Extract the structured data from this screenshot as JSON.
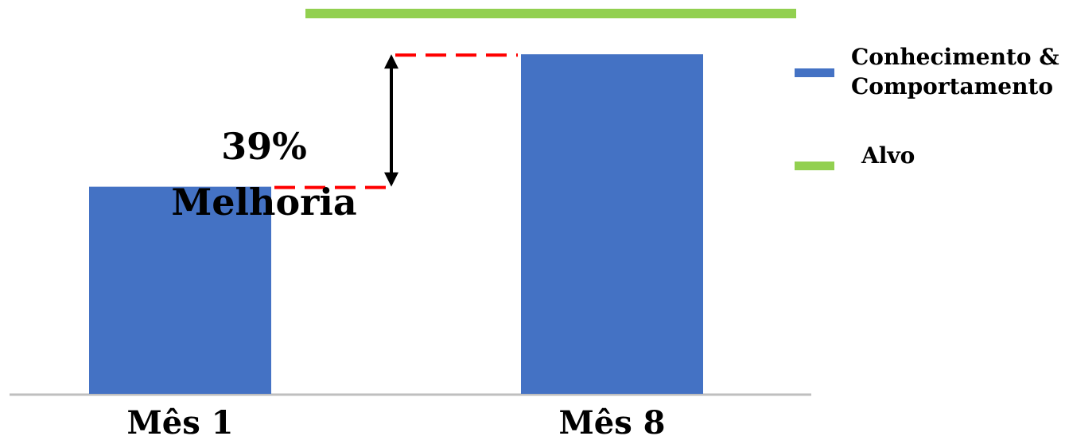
{
  "chart_data": {
    "type": "bar",
    "categories": [
      "Mês 1",
      "Mês 8"
    ],
    "series": [
      {
        "name": "Conhecimento & Comportamento",
        "values": [
          0.61,
          1.0
        ],
        "color": "#4472C4"
      }
    ],
    "target": {
      "name": "Alvo",
      "value": 1.12,
      "color": "#92D050"
    },
    "ylim": [
      0,
      1.12
    ],
    "annotation": {
      "line1": "39%",
      "line2": "Melhoria",
      "from_category": 0,
      "to_category": 1,
      "connector_color": "#FF0000"
    },
    "legend": [
      {
        "label_lines": [
          "Conhecimento &",
          "Comportamento"
        ],
        "color": "#4472C4"
      },
      {
        "label_lines": [
          "Alvo"
        ],
        "color": "#92D050"
      }
    ],
    "legend_position": "right",
    "grid": false
  }
}
